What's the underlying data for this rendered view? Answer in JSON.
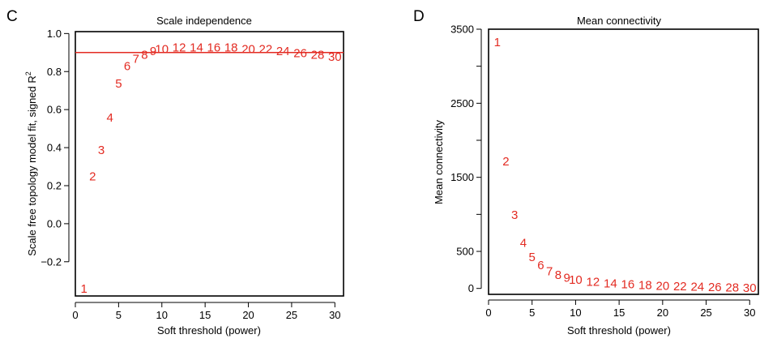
{
  "colors": {
    "accent": "#e32b22",
    "axis": "#000000"
  },
  "chart_data": [
    {
      "panel": "C",
      "type": "scatter",
      "title": "Scale independence",
      "xlabel": "Soft threshold (power)",
      "ylabel": "Scale free topology model fit, signed R",
      "ylabel_sup": "2",
      "xlim": [
        0,
        31
      ],
      "ylim": [
        -0.38,
        1.01
      ],
      "xticks": [
        0,
        5,
        10,
        15,
        20,
        25,
        30
      ],
      "yticks": [
        -0.2,
        0.0,
        0.2,
        0.4,
        0.6,
        0.8,
        1.0
      ],
      "ytick_labels": [
        "−0.2",
        "0.0",
        "0.2",
        "0.4",
        "0.6",
        "0.8",
        "1.0"
      ],
      "hline": 0.9,
      "points": [
        {
          "x": 1,
          "y": -0.34,
          "label": "1"
        },
        {
          "x": 2,
          "y": 0.25,
          "label": "2"
        },
        {
          "x": 3,
          "y": 0.39,
          "label": "3"
        },
        {
          "x": 4,
          "y": 0.56,
          "label": "4"
        },
        {
          "x": 5,
          "y": 0.74,
          "label": "5"
        },
        {
          "x": 6,
          "y": 0.83,
          "label": "6"
        },
        {
          "x": 7,
          "y": 0.87,
          "label": "7"
        },
        {
          "x": 8,
          "y": 0.89,
          "label": "8"
        },
        {
          "x": 9,
          "y": 0.91,
          "label": "9"
        },
        {
          "x": 10,
          "y": 0.92,
          "label": "10"
        },
        {
          "x": 12,
          "y": 0.93,
          "label": "12"
        },
        {
          "x": 14,
          "y": 0.93,
          "label": "14"
        },
        {
          "x": 16,
          "y": 0.93,
          "label": "16"
        },
        {
          "x": 18,
          "y": 0.93,
          "label": "18"
        },
        {
          "x": 20,
          "y": 0.92,
          "label": "20"
        },
        {
          "x": 22,
          "y": 0.92,
          "label": "22"
        },
        {
          "x": 24,
          "y": 0.91,
          "label": "24"
        },
        {
          "x": 26,
          "y": 0.9,
          "label": "26"
        },
        {
          "x": 28,
          "y": 0.89,
          "label": "28"
        },
        {
          "x": 30,
          "y": 0.88,
          "label": "30"
        }
      ]
    },
    {
      "panel": "D",
      "type": "scatter",
      "title": "Mean connectivity",
      "xlabel": "Soft threshold (power)",
      "ylabel": "Mean connectivity",
      "xlim": [
        0,
        31
      ],
      "ylim": [
        -80,
        3500
      ],
      "xticks": [
        0,
        5,
        10,
        15,
        20,
        25,
        30
      ],
      "yticks": [
        0,
        500,
        1000,
        1500,
        2000,
        2500,
        3000,
        3500
      ],
      "ytick_labels": [
        "0",
        "500",
        "",
        "1500",
        "",
        "2500",
        "",
        "3500"
      ],
      "points": [
        {
          "x": 1,
          "y": 3330,
          "label": "1"
        },
        {
          "x": 2,
          "y": 1720,
          "label": "2"
        },
        {
          "x": 3,
          "y": 1000,
          "label": "3"
        },
        {
          "x": 4,
          "y": 620,
          "label": "4"
        },
        {
          "x": 5,
          "y": 430,
          "label": "5"
        },
        {
          "x": 6,
          "y": 320,
          "label": "6"
        },
        {
          "x": 7,
          "y": 240,
          "label": "7"
        },
        {
          "x": 8,
          "y": 190,
          "label": "8"
        },
        {
          "x": 9,
          "y": 150,
          "label": "9"
        },
        {
          "x": 10,
          "y": 125,
          "label": "10"
        },
        {
          "x": 12,
          "y": 95,
          "label": "12"
        },
        {
          "x": 14,
          "y": 75,
          "label": "14"
        },
        {
          "x": 16,
          "y": 60,
          "label": "16"
        },
        {
          "x": 18,
          "y": 50,
          "label": "18"
        },
        {
          "x": 20,
          "y": 40,
          "label": "20"
        },
        {
          "x": 22,
          "y": 33,
          "label": "22"
        },
        {
          "x": 24,
          "y": 27,
          "label": "24"
        },
        {
          "x": 26,
          "y": 22,
          "label": "26"
        },
        {
          "x": 28,
          "y": 18,
          "label": "28"
        },
        {
          "x": 30,
          "y": 15,
          "label": "30"
        }
      ]
    }
  ]
}
